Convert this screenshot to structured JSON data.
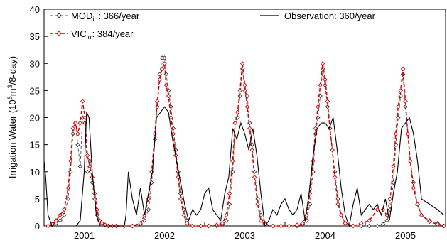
{
  "chart_data": {
    "type": "line",
    "ylabel": "Irrigation Water (10",
    "ylabel_sup": "6",
    "ylabel_mid": "m",
    "ylabel_sup2": "3",
    "ylabel_end": "/8-day)",
    "ylim": [
      0,
      40
    ],
    "yticks": [
      "0",
      "5",
      "10",
      "15",
      "20",
      "25",
      "30",
      "35",
      "40"
    ],
    "xlim": [
      2000.5,
      2005.5
    ],
    "xticks": [
      {
        "label": "2001",
        "value": 2001.0
      },
      {
        "label": "2002",
        "value": 2002.0
      },
      {
        "label": "2003",
        "value": 2003.0
      },
      {
        "label": "2004",
        "value": 2004.0
      },
      {
        "label": "2005",
        "value": 2005.0
      }
    ],
    "grid": false,
    "legend": [
      {
        "prefix": "MOD",
        "sub": "irr",
        "suffix": ": 366/year",
        "color": "#555555",
        "style": "dashed",
        "marker": "diamond"
      },
      {
        "prefix": "VIC",
        "sub": "irr",
        "suffix": ":  384/year",
        "color": "#e00000",
        "style": "dashed",
        "marker": "diamond"
      },
      {
        "prefix": "Observation: 360/year",
        "sub": "",
        "suffix": "",
        "color": "#000000",
        "style": "solid",
        "marker": "none"
      }
    ],
    "series": [
      {
        "name": "MOD irr: 366/year",
        "color": "#555555",
        "x": [
          2000.55,
          2000.6,
          2000.65,
          2000.7,
          2000.75,
          2000.8,
          2000.83,
          2000.86,
          2000.89,
          2000.92,
          2000.95,
          2000.98,
          2001.01,
          2001.04,
          2001.07,
          2001.1,
          2001.13,
          2001.16,
          2001.19,
          2001.22,
          2001.26,
          2001.3,
          2001.35,
          2001.4,
          2001.5,
          2001.6,
          2001.7,
          2001.75,
          2001.8,
          2001.84,
          2001.88,
          2001.91,
          2001.94,
          2001.97,
          2002.0,
          2002.02,
          2002.05,
          2002.08,
          2002.11,
          2002.14,
          2002.17,
          2002.2,
          2002.24,
          2002.28,
          2002.35,
          2002.45,
          2002.55,
          2002.65,
          2002.72,
          2002.77,
          2002.81,
          2002.85,
          2002.88,
          2002.91,
          2002.94,
          2002.97,
          2003.0,
          2003.03,
          2003.06,
          2003.09,
          2003.12,
          2003.16,
          2003.2,
          2003.25,
          2003.35,
          2003.45,
          2003.55,
          2003.65,
          2003.72,
          2003.77,
          2003.81,
          2003.85,
          2003.88,
          2003.91,
          2003.94,
          2003.97,
          2004.0,
          2004.03,
          2004.06,
          2004.09,
          2004.12,
          2004.16,
          2004.2,
          2004.25,
          2004.35,
          2004.45,
          2004.55,
          2004.65,
          2004.72,
          2004.77,
          2004.81,
          2004.85,
          2004.88,
          2004.91,
          2004.94,
          2004.97,
          2005.0,
          2005.03,
          2005.06,
          2005.1,
          2005.15,
          2005.2,
          2005.3,
          2005.4,
          2005.48
        ],
        "values": [
          0,
          0.2,
          0.5,
          1,
          2,
          5,
          10,
          17,
          19,
          15,
          11,
          20,
          19,
          10,
          12,
          8,
          5,
          2,
          1,
          0.5,
          0.2,
          0,
          0,
          0,
          0,
          0,
          0.3,
          1,
          3,
          8,
          16,
          22,
          28,
          31,
          31,
          28,
          25,
          22,
          18,
          14,
          10,
          6,
          3,
          1,
          0,
          0,
          0,
          0,
          0.3,
          1,
          4,
          10,
          19,
          20,
          24,
          29,
          25,
          24,
          19,
          15,
          10,
          5,
          2,
          0.5,
          0,
          0,
          0,
          0,
          0.3,
          1,
          4,
          10,
          17,
          20,
          24,
          29,
          26,
          22,
          18,
          14,
          10,
          5,
          2,
          0.5,
          0,
          0,
          0,
          0,
          0.3,
          1,
          3,
          8,
          15,
          20,
          24,
          28,
          22,
          17,
          12,
          8,
          4,
          2,
          1,
          0.5,
          0
        ]
      },
      {
        "name": "VIC irr: 384/year",
        "color": "#e00000",
        "x": [
          2000.55,
          2000.6,
          2000.65,
          2000.7,
          2000.75,
          2000.8,
          2000.83,
          2000.86,
          2000.89,
          2000.92,
          2000.95,
          2000.98,
          2001.01,
          2001.04,
          2001.07,
          2001.1,
          2001.13,
          2001.16,
          2001.19,
          2001.22,
          2001.26,
          2001.3,
          2001.35,
          2001.4,
          2001.5,
          2001.6,
          2001.7,
          2001.75,
          2001.8,
          2001.84,
          2001.88,
          2001.91,
          2001.94,
          2001.97,
          2002.0,
          2002.02,
          2002.05,
          2002.08,
          2002.11,
          2002.14,
          2002.17,
          2002.2,
          2002.24,
          2002.28,
          2002.35,
          2002.45,
          2002.55,
          2002.65,
          2002.72,
          2002.77,
          2002.81,
          2002.85,
          2002.88,
          2002.91,
          2002.94,
          2002.97,
          2003.0,
          2003.03,
          2003.06,
          2003.09,
          2003.12,
          2003.16,
          2003.2,
          2003.25,
          2003.35,
          2003.45,
          2003.55,
          2003.65,
          2003.72,
          2003.77,
          2003.81,
          2003.85,
          2003.88,
          2003.91,
          2003.94,
          2003.97,
          2004.0,
          2004.03,
          2004.06,
          2004.09,
          2004.12,
          2004.16,
          2004.2,
          2004.25,
          2004.35,
          2004.45,
          2004.55,
          2004.65,
          2004.72,
          2004.77,
          2004.81,
          2004.85,
          2004.88,
          2004.91,
          2004.94,
          2004.97,
          2005.0,
          2005.03,
          2005.06,
          2005.1,
          2005.15,
          2005.2,
          2005.3,
          2005.4,
          2005.48
        ],
        "values": [
          0,
          0.3,
          1,
          2,
          3,
          7,
          12,
          18,
          19,
          17,
          19,
          23,
          20,
          13,
          11,
          9,
          6,
          3,
          1,
          0.5,
          0.2,
          0,
          0,
          0,
          0,
          0,
          0.5,
          2,
          5,
          10,
          17,
          23,
          27,
          29,
          30,
          26,
          24,
          20,
          17,
          13,
          9,
          5,
          2,
          0.5,
          0,
          0,
          0,
          0.2,
          0.5,
          2,
          6,
          12,
          19,
          21,
          25,
          30,
          26,
          22,
          18,
          14,
          9,
          4,
          1,
          0.3,
          0,
          0,
          0,
          0.2,
          0.5,
          2,
          6,
          12,
          18,
          22,
          26,
          30,
          27,
          23,
          18,
          14,
          9,
          4,
          2,
          0.5,
          0,
          0.5,
          1,
          3,
          3,
          2,
          5,
          11,
          17,
          22,
          25,
          29,
          23,
          17,
          12,
          7,
          4,
          2,
          0.8,
          0.3,
          0
        ]
      },
      {
        "name": "Observation: 360/year",
        "color": "#000000",
        "x": [
          2000.5,
          2000.52,
          2000.55,
          2000.6,
          2000.7,
          2000.8,
          2000.9,
          2000.95,
          2001.0,
          2001.03,
          2001.06,
          2001.1,
          2001.15,
          2001.2,
          2001.3,
          2001.4,
          2001.5,
          2001.52,
          2001.55,
          2001.6,
          2001.65,
          2001.7,
          2001.75,
          2001.8,
          2001.85,
          2001.9,
          2001.95,
          2002.0,
          2002.05,
          2002.1,
          2002.15,
          2002.2,
          2002.25,
          2002.3,
          2002.35,
          2002.4,
          2002.45,
          2002.5,
          2002.55,
          2002.6,
          2002.65,
          2002.7,
          2002.75,
          2002.8,
          2002.85,
          2002.9,
          2002.95,
          2003.0,
          2003.05,
          2003.1,
          2003.15,
          2003.2,
          2003.25,
          2003.3,
          2003.35,
          2003.4,
          2003.45,
          2003.5,
          2003.55,
          2003.6,
          2003.65,
          2003.7,
          2003.75,
          2003.8,
          2003.85,
          2003.9,
          2003.95,
          2004.0,
          2004.05,
          2004.1,
          2004.15,
          2004.2,
          2004.25,
          2004.3,
          2004.35,
          2004.4,
          2004.45,
          2004.5,
          2004.55,
          2004.6,
          2004.65,
          2004.7,
          2004.75,
          2004.8,
          2004.85,
          2004.9,
          2004.95,
          2005.0,
          2005.05,
          2005.1,
          2005.15,
          2005.2,
          2005.3,
          2005.4,
          2005.48
        ],
        "values": [
          12,
          9,
          2,
          0,
          0,
          0,
          0,
          1,
          10,
          21,
          20,
          10,
          2,
          0,
          0,
          0,
          0,
          2,
          10,
          5,
          2,
          7,
          2,
          6,
          10,
          20,
          21,
          22,
          21,
          16,
          12,
          8,
          4,
          1,
          3,
          2,
          3,
          6,
          7,
          3,
          2,
          1,
          6,
          9,
          18,
          16,
          19,
          17,
          14,
          18,
          13,
          6,
          0,
          1,
          3,
          2,
          4,
          5,
          3,
          2,
          3,
          6,
          1,
          6,
          13,
          18,
          19,
          19,
          18,
          20,
          14,
          7,
          2,
          0,
          4,
          7,
          2,
          3,
          4,
          3,
          4,
          2,
          5,
          1,
          6,
          10,
          18,
          19,
          20,
          17,
          12,
          5,
          4,
          3,
          2
        ]
      }
    ]
  }
}
